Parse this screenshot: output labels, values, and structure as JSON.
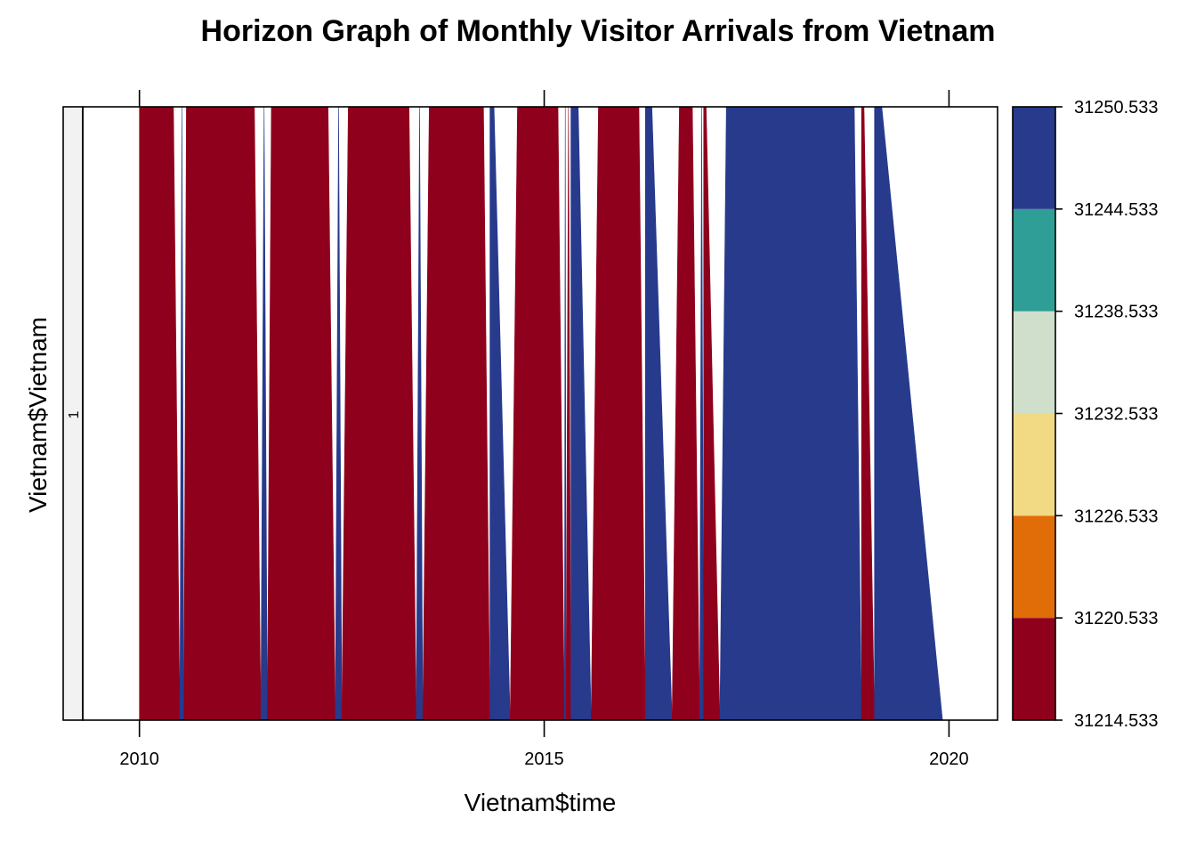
{
  "chart_data": {
    "type": "area",
    "subtype": "horizon",
    "title": "Horizon Graph of Monthly Visitor Arrivals from Vietnam",
    "xlabel": "Vietnam$time",
    "ylabel": "Vietnam$Vietnam",
    "strip_label": "1",
    "xlim": [
      2009.3,
      2020.6
    ],
    "x_ticks": [
      2010,
      2015,
      2020
    ],
    "x_tick_labels": [
      "2010",
      "2015",
      "2020"
    ],
    "colorkey": {
      "breaks": [
        31214.533,
        31220.533,
        31226.533,
        31232.533,
        31238.533,
        31244.533,
        31250.533
      ],
      "break_labels": [
        "31214.533",
        "31220.533",
        "31226.533",
        "31232.533",
        "31238.533",
        "31244.533",
        "31250.533"
      ],
      "colors": [
        "#8F001C",
        "#E06D07",
        "#F2D984",
        "#CFDFCB",
        "#2E9E96",
        "#273A8C"
      ]
    },
    "band_colors": {
      "below": "#8F001C",
      "above": "#273A8C"
    },
    "segments": [
      {
        "sign": "below",
        "x": [
          2010.0,
          2010.42,
          2010.5
        ]
      },
      {
        "sign": "above",
        "x": [
          2010.5,
          2010.55
        ]
      },
      {
        "sign": "below",
        "x": [
          2010.55,
          2010.58,
          2011.42,
          2011.5
        ]
      },
      {
        "sign": "above",
        "x": [
          2011.5,
          2011.58
        ]
      },
      {
        "sign": "below",
        "x": [
          2011.58,
          2011.63,
          2012.33,
          2012.42
        ]
      },
      {
        "sign": "above",
        "x": [
          2012.42,
          2012.5
        ]
      },
      {
        "sign": "below",
        "x": [
          2012.5,
          2012.58,
          2013.33,
          2013.42
        ]
      },
      {
        "sign": "above",
        "x": [
          2013.42,
          2013.5
        ]
      },
      {
        "sign": "below",
        "x": [
          2013.5,
          2013.58,
          2014.25,
          2014.33
        ]
      },
      {
        "sign": "above",
        "x": [
          2014.33,
          2014.38,
          2014.58
        ]
      },
      {
        "sign": "below",
        "x": [
          2014.58,
          2014.67,
          2015.17,
          2015.25
        ]
      },
      {
        "sign": "above",
        "x": [
          2015.25,
          2015.27
        ]
      },
      {
        "sign": "below",
        "x": [
          2015.27,
          2015.33
        ]
      },
      {
        "sign": "above",
        "x": [
          2015.33,
          2015.42,
          2015.58
        ]
      },
      {
        "sign": "below",
        "x": [
          2015.58,
          2015.67,
          2016.17,
          2016.25
        ]
      },
      {
        "sign": "above",
        "x": [
          2016.25,
          2016.33,
          2016.58
        ]
      },
      {
        "sign": "below",
        "x": [
          2016.58,
          2016.67,
          2016.83,
          2016.92
        ]
      },
      {
        "sign": "above",
        "x": [
          2016.92,
          2016.97
        ]
      },
      {
        "sign": "below",
        "x": [
          2016.97,
          2017.0,
          2017.17
        ]
      },
      {
        "sign": "above",
        "x": [
          2017.17,
          2017.25,
          2018.83,
          2018.92
        ]
      },
      {
        "sign": "below",
        "x": [
          2018.92,
          2018.95,
          2019.08
        ]
      },
      {
        "sign": "above",
        "x": [
          2019.08,
          2019.17,
          2019.92
        ]
      }
    ]
  }
}
